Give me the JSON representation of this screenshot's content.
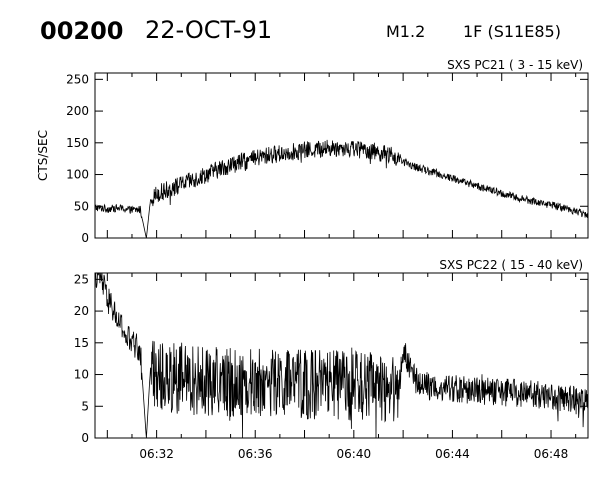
{
  "header": {
    "event_id": "00200",
    "date": "22-OCT-91",
    "flare_class": "M1.2",
    "flare_importance": "1F (S11E85)"
  },
  "chart_data": [
    {
      "type": "line",
      "title": "SXS PC21  (  3 - 15 keV)",
      "ylabel": "CTS/SEC",
      "xlabel": "",
      "xlim": [
        "06:29:30",
        "06:49:30"
      ],
      "ylim": [
        0,
        260
      ],
      "yticks": [
        0,
        50,
        100,
        150,
        200,
        250
      ],
      "xtick_labels": [
        "",
        "",
        "",
        "",
        ""
      ],
      "grid": false,
      "series": [
        {
          "x": [
            "06:29:30",
            "06:30:00",
            "06:30:30",
            "06:31:00",
            "06:31:20",
            "06:31:35",
            "06:31:45",
            "06:32:00",
            "06:32:30",
            "06:33:00",
            "06:33:30",
            "06:34:00",
            "06:34:30",
            "06:35:00",
            "06:35:30",
            "06:36:00",
            "06:36:30",
            "06:37:00",
            "06:37:30",
            "06:38:00",
            "06:38:30",
            "06:39:00",
            "06:39:30",
            "06:40:00",
            "06:40:30",
            "06:41:00",
            "06:41:30",
            "06:42:00",
            "06:42:30",
            "06:43:00",
            "06:43:30",
            "06:44:00",
            "06:44:30",
            "06:45:00",
            "06:45:30",
            "06:46:00",
            "06:46:30",
            "06:47:00",
            "06:47:30",
            "06:48:00",
            "06:48:30",
            "06:49:00",
            "06:49:30"
          ],
          "values": [
            48,
            46,
            47,
            44,
            45,
            0,
            60,
            70,
            77,
            84,
            92,
            100,
            108,
            115,
            120,
            125,
            130,
            133,
            136,
            138,
            140,
            141,
            142,
            141,
            139,
            135,
            130,
            120,
            112,
            106,
            100,
            94,
            88,
            82,
            76,
            70,
            65,
            60,
            56,
            52,
            48,
            42,
            36
          ]
        }
      ]
    },
    {
      "type": "line",
      "title": "SXS PC22  ( 15 - 40 keV)",
      "ylabel": "",
      "xlabel": "",
      "xlim": [
        "06:29:30",
        "06:49:30"
      ],
      "ylim": [
        0,
        26
      ],
      "yticks": [
        0,
        5,
        10,
        15,
        20,
        25
      ],
      "xtick_labels": [
        "06:32",
        "06:36",
        "06:40",
        "06:44",
        "06:48"
      ],
      "grid": false,
      "series": [
        {
          "x": [
            "06:29:30",
            "06:29:45",
            "06:30:00",
            "06:30:15",
            "06:30:30",
            "06:30:45",
            "06:31:00",
            "06:31:20",
            "06:31:35",
            "06:31:45",
            "06:32:00",
            "06:32:30",
            "06:33:00",
            "06:34:00",
            "06:35:00",
            "06:36:00",
            "06:37:00",
            "06:38:00",
            "06:39:00",
            "06:40:00",
            "06:41:00",
            "06:41:50",
            "06:42:00",
            "06:42:30",
            "06:43:00",
            "06:44:00",
            "06:45:00",
            "06:46:00",
            "06:47:00",
            "06:48:00",
            "06:49:00",
            "06:49:30"
          ],
          "values": [
            26,
            25,
            22,
            20,
            18,
            16,
            15,
            14,
            0,
            11,
            10,
            9.5,
            9.2,
            9.0,
            8.8,
            8.7,
            8.6,
            8.5,
            8.4,
            8.2,
            8.0,
            7.8,
            14,
            9,
            8.2,
            7.8,
            7.5,
            7.2,
            7.0,
            6.6,
            6.0,
            5.6
          ]
        }
      ]
    }
  ]
}
